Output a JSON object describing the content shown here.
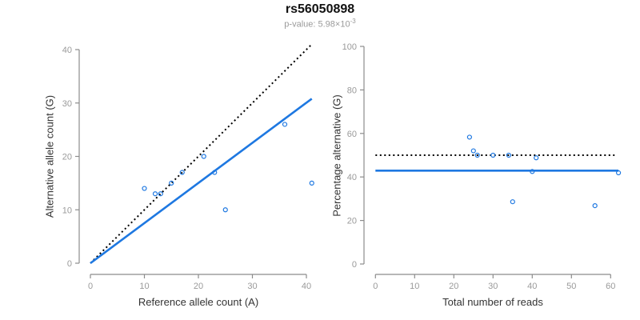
{
  "header": {
    "title": "rs56050898",
    "p_value_prefix": "p-value: 5.98×10",
    "p_value_exponent": "-3"
  },
  "colors": {
    "points": "#1E78E1",
    "fit_line": "#1E78E1",
    "reference_line": "#000000",
    "axis": "#8c8c8c",
    "tick_labels": "#9a9a9a",
    "axis_titles": "#333333",
    "title": "#111111",
    "subtitle": "#9a9a9a"
  },
  "chart_data": [
    {
      "type": "scatter",
      "title": "rs56050898",
      "xlabel": "Reference allele count (A)",
      "ylabel": "Alternative allele count (G)",
      "xlim": [
        0,
        41
      ],
      "ylim": [
        0,
        41
      ],
      "xticks": [
        0,
        10,
        20,
        30,
        40
      ],
      "yticks": [
        0,
        10,
        20,
        30,
        40
      ],
      "grid": false,
      "legend": false,
      "marker": "open-circle",
      "points": [
        [
          10,
          14
        ],
        [
          12,
          13
        ],
        [
          13,
          13
        ],
        [
          15,
          15
        ],
        [
          17,
          17
        ],
        [
          21,
          20
        ],
        [
          23,
          17
        ],
        [
          25,
          10
        ],
        [
          36,
          26
        ],
        [
          41,
          15
        ]
      ],
      "lines": [
        {
          "name": "identity-reference",
          "style": "dotted",
          "color": "#000000",
          "x1": 0,
          "y1": 0,
          "x2": 41,
          "y2": 41
        },
        {
          "name": "fit",
          "style": "solid",
          "color": "#1E78E1",
          "x1": 0,
          "y1": 0,
          "x2": 41,
          "y2": 30.8
        }
      ]
    },
    {
      "type": "scatter",
      "title": "",
      "xlabel": "Total number of reads",
      "ylabel": "Percentage alternative (G)",
      "xlim": [
        0,
        62
      ],
      "ylim": [
        0,
        100
      ],
      "xticks": [
        0,
        10,
        20,
        30,
        40,
        50,
        60
      ],
      "yticks": [
        0,
        20,
        40,
        60,
        80,
        100
      ],
      "grid": false,
      "legend": false,
      "marker": "open-circle",
      "points": [
        [
          24,
          58.3
        ],
        [
          25,
          52.0
        ],
        [
          26,
          50.0
        ],
        [
          30,
          50.0
        ],
        [
          34,
          50.0
        ],
        [
          41,
          48.8
        ],
        [
          40,
          42.5
        ],
        [
          35,
          28.6
        ],
        [
          62,
          41.9
        ],
        [
          56,
          26.8
        ]
      ],
      "lines": [
        {
          "name": "expected-50pct",
          "style": "dotted",
          "color": "#000000",
          "x1": 0,
          "y1": 50,
          "x2": 61,
          "y2": 50
        },
        {
          "name": "fit",
          "style": "solid",
          "color": "#1E78E1",
          "x1": 0,
          "y1": 42.9,
          "x2": 62,
          "y2": 42.9
        }
      ]
    }
  ]
}
